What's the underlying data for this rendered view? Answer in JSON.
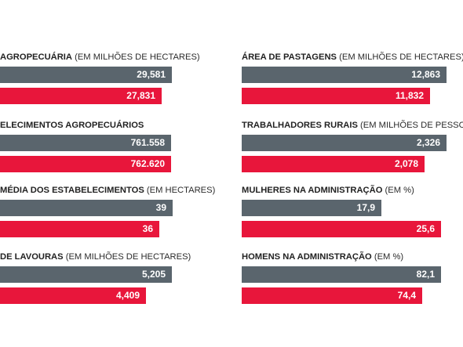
{
  "colors": {
    "series_a": "#5a656d",
    "series_b": "#e8163b"
  },
  "chart_data": [
    {
      "type": "bar",
      "title": {
        "main": "AGROPECUÁRIA",
        "unit": "(EM MILHÕES DE HECTARES)"
      },
      "values": [
        29.581,
        27.831
      ],
      "labels": [
        "29,581",
        "27,831"
      ]
    },
    {
      "type": "bar",
      "title": {
        "main": "ÁREA DE PASTAGENS",
        "unit": "(EM MILHÕES DE HECTARES)"
      },
      "values": [
        12.863,
        11.832
      ],
      "labels": [
        "12,863",
        "11,832"
      ]
    },
    {
      "type": "bar",
      "title": {
        "main": "ELECIMENTOS AGROPECUÁRIOS",
        "unit": ""
      },
      "values": [
        761558,
        762620
      ],
      "labels": [
        "761.558",
        "762.620"
      ]
    },
    {
      "type": "bar",
      "title": {
        "main": "TRABALHADORES RURAIS",
        "unit": "(EM MILHÕES DE PESSOAS)"
      },
      "values": [
        2.326,
        2.078
      ],
      "labels": [
        "2,326",
        "2,078"
      ]
    },
    {
      "type": "bar",
      "title": {
        "main": "MÉDIA DOS ESTABELECIMENTOS",
        "unit": "(EM HECTARES)"
      },
      "values": [
        39,
        36
      ],
      "labels": [
        "39",
        "36"
      ]
    },
    {
      "type": "bar",
      "title": {
        "main": "MULHERES NA ADMINISTRAÇÃO",
        "unit": "(EM %)"
      },
      "values": [
        17.9,
        25.6
      ],
      "labels": [
        "17,9",
        "25,6"
      ]
    },
    {
      "type": "bar",
      "title": {
        "main": "DE LAVOURAS",
        "unit": "(EM MILHÕES DE HECTARES)"
      },
      "values": [
        5.205,
        4.409
      ],
      "labels": [
        "5,205",
        "4,409"
      ]
    },
    {
      "type": "bar",
      "title": {
        "main": "HOMENS NA ADMINISTRAÇÃO",
        "unit": "(EM %)"
      },
      "values": [
        82.1,
        74.4
      ],
      "labels": [
        "82,1",
        "74,4"
      ]
    }
  ]
}
